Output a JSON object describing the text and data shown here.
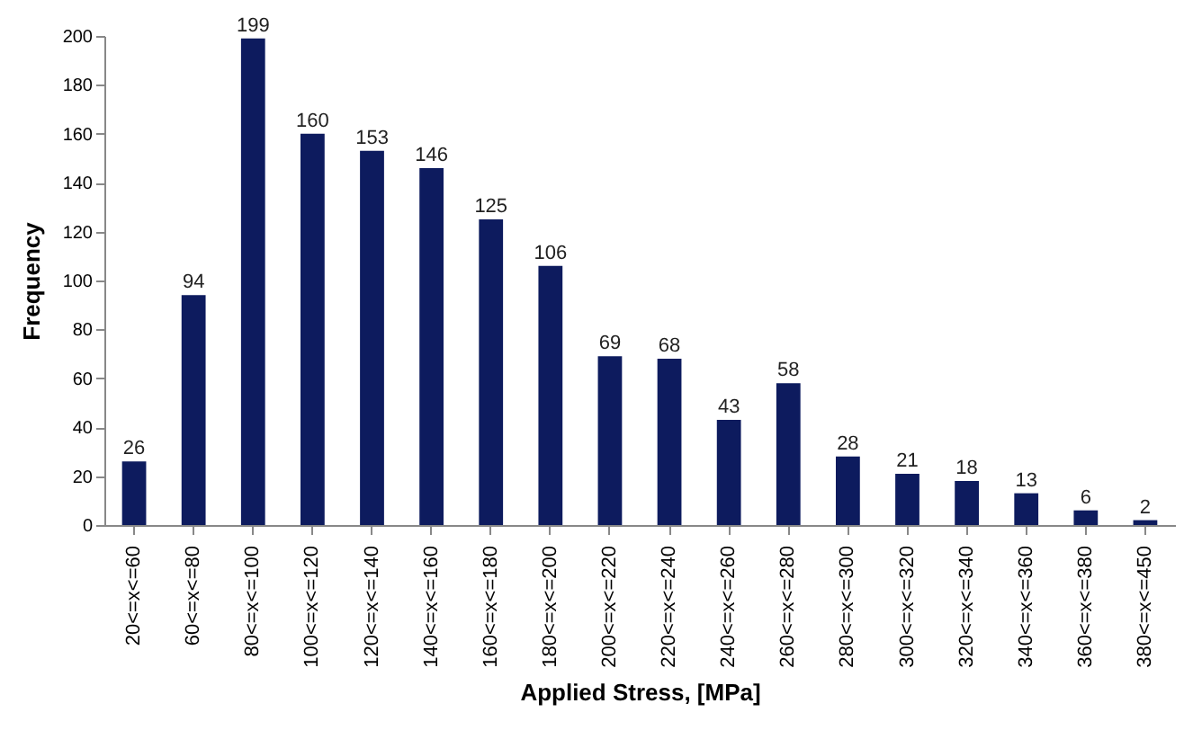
{
  "chart_data": {
    "type": "bar",
    "xlabel": "Applied Stress, [MPa]",
    "ylabel": "Frequency",
    "categories": [
      "20<=x<=60",
      "60<=x<=80",
      "80<=x<=100",
      "100<=x<=120",
      "120<=x<=140",
      "140<=x<=160",
      "160<=x<=180",
      "180<=x<=200",
      "200<=x<=220",
      "220<=x<=240",
      "240<=x<=260",
      "260<=x<=280",
      "280<=x<=300",
      "300<=x<=320",
      "320<=x<=340",
      "340<=x<=360",
      "360<=x<=380",
      "380<=x<=450"
    ],
    "values": [
      26,
      94,
      199,
      160,
      153,
      146,
      125,
      106,
      69,
      68,
      43,
      58,
      28,
      21,
      18,
      13,
      6,
      2
    ],
    "color": "#0d1b5e",
    "data_labels": true,
    "grid": false,
    "ylim": [
      0,
      200
    ],
    "yticks": [
      0,
      20,
      40,
      60,
      80,
      100,
      120,
      140,
      160,
      180,
      200
    ]
  }
}
